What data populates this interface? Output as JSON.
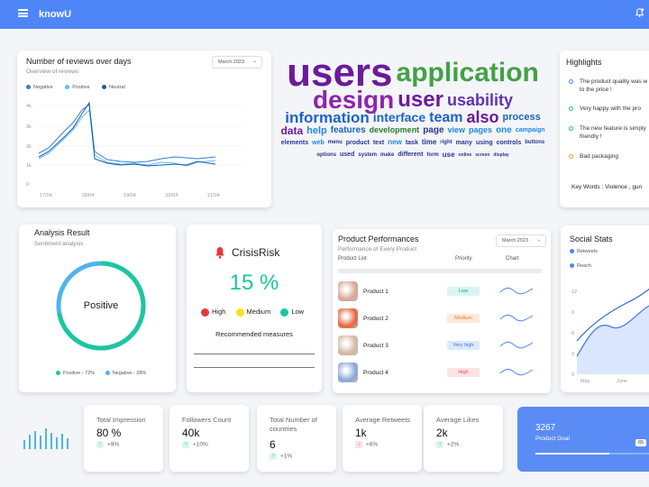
{
  "app": {
    "title": "knowU"
  },
  "reviews": {
    "title": "Number of reviews over days",
    "subtitle": "Overview of reviews",
    "dropdown": "March 2023",
    "legend": [
      "Negative",
      "Positive",
      "Neutral"
    ],
    "colors": {
      "negative": "#3a7bd5",
      "positive": "#5bc0eb",
      "neutral": "#1f5aa6"
    },
    "chart_data": {
      "type": "line",
      "x": [
        "17/04",
        "18/04",
        "19/04",
        "20/04",
        "21/04"
      ],
      "y_ticks": [
        "4k",
        "3k",
        "2k",
        "1k",
        "0"
      ],
      "ylim": [
        0,
        4000
      ]
    }
  },
  "highlights": {
    "title": "Highlights",
    "items": [
      {
        "text": "The product quality was w",
        "text2": "to the price !",
        "color": "#4f86f7"
      },
      {
        "text": "Very happy with the pro",
        "text2": "",
        "color": "#2ab7a9"
      },
      {
        "text": "The new feature is simply",
        "text2": "friendly !",
        "color": "#2ab7a9"
      },
      {
        "text": "Bad packaging",
        "text2": "",
        "color": "#f0a030"
      }
    ],
    "keywords": "Key Words :  Violence , gun"
  },
  "analysis": {
    "title": "Analysis Result",
    "subtitle": "Sentiment analysis",
    "center_label": "Positive",
    "legend": [
      {
        "label": "Positive - 72%",
        "color": "#1cc6a0"
      },
      {
        "label": "Negative - 28%",
        "color": "#4fb3f0"
      }
    ],
    "chart_data": {
      "type": "pie",
      "categories": [
        "Positive",
        "Negative"
      ],
      "values": [
        72,
        28
      ]
    }
  },
  "crisis": {
    "title": "CrisisRisk",
    "value": "15 %",
    "levels": [
      {
        "label": "High",
        "color": "#e53935"
      },
      {
        "label": "Medium",
        "color": "#f6e21f"
      },
      {
        "label": "Low",
        "color": "#1cc6a0"
      }
    ],
    "measures_title": "Recommended measures"
  },
  "products": {
    "title": "Product Performances",
    "subtitle": "Performance of Every Product",
    "dropdown": "March 2023",
    "columns": [
      "Product List",
      "Priority",
      "Chart"
    ],
    "rows": [
      {
        "name": "Product 1",
        "priority": "Low",
        "bg": "#d7f5ef",
        "fg": "#1a9b84"
      },
      {
        "name": "Product 2",
        "priority": "Medium",
        "bg": "#fde9d6",
        "fg": "#e0823a"
      },
      {
        "name": "Product 3",
        "priority": "Very high",
        "bg": "#dde9ff",
        "fg": "#3a6fd8"
      },
      {
        "name": "Product 4",
        "priority": "High",
        "bg": "#fde2e2",
        "fg": "#e05656"
      }
    ]
  },
  "social": {
    "title": "Social Stats",
    "legend": [
      {
        "label": "Retweets",
        "color": "#4f86f7"
      },
      {
        "label": "Reach",
        "color": "#4f86f7"
      }
    ],
    "chart_data": {
      "type": "area",
      "x": [
        "May",
        "June"
      ],
      "y_ticks": [
        "12",
        "9",
        "6",
        "3",
        "0"
      ],
      "ylim": [
        0,
        12
      ]
    }
  },
  "kpis": [
    {
      "label": "Total Impression",
      "value": "80 %",
      "delta": "+9%",
      "arrow": "↑"
    },
    {
      "label": "Followers Count",
      "value": "40k",
      "delta": "+10%",
      "arrow": "↑"
    },
    {
      "label": "Total Number of countries",
      "value": "6",
      "delta": "+1%",
      "arrow": "↑"
    },
    {
      "label": "Average Retweets",
      "value": "1k",
      "delta": "+6%",
      "arrow": "↓"
    },
    {
      "label": "Average Likes",
      "value": "2k",
      "delta": "+2%",
      "arrow": "↑"
    }
  ],
  "goal": {
    "value": "3267",
    "label": "Product Goal",
    "percent_label": "65",
    "progress": 0.65
  },
  "wordcloud": {
    "words": [
      {
        "t": "users",
        "c": "#6a1b9a",
        "s": 44
      },
      {
        "t": "application",
        "c": "#43a047",
        "s": 30
      },
      {
        "t": "design",
        "c": "#8e24aa",
        "s": 28
      },
      {
        "t": "user",
        "c": "#6a1b9a",
        "s": 24
      },
      {
        "t": "usability",
        "c": "#5e35b1",
        "s": 18
      },
      {
        "t": "information",
        "c": "#1e63c4",
        "s": 17
      },
      {
        "t": "interface",
        "c": "#1e63c4",
        "s": 14
      },
      {
        "t": "team",
        "c": "#1e63c4",
        "s": 16
      },
      {
        "t": "also",
        "c": "#6a1b9a",
        "s": 18
      },
      {
        "t": "process",
        "c": "#1565c0",
        "s": 11
      },
      {
        "t": "data",
        "c": "#6a1b9a",
        "s": 12
      },
      {
        "t": "help",
        "c": "#1e88e5",
        "s": 11
      },
      {
        "t": "features",
        "c": "#1565c0",
        "s": 10
      },
      {
        "t": "development",
        "c": "#2e7d32",
        "s": 9
      },
      {
        "t": "page",
        "c": "#283593",
        "s": 10
      },
      {
        "t": "view",
        "c": "#1e88e5",
        "s": 9
      },
      {
        "t": "pages",
        "c": "#1e88e5",
        "s": 9
      },
      {
        "t": "one",
        "c": "#1e88e5",
        "s": 10
      },
      {
        "t": "campaign",
        "c": "#1e88e5",
        "s": 7
      },
      {
        "t": "elements",
        "c": "#283593",
        "s": 7
      },
      {
        "t": "web",
        "c": "#1e88e5",
        "s": 7
      },
      {
        "t": "menu",
        "c": "#283593",
        "s": 6
      },
      {
        "t": "product",
        "c": "#283593",
        "s": 7
      },
      {
        "t": "text",
        "c": "#283593",
        "s": 7
      },
      {
        "t": "new",
        "c": "#1e88e5",
        "s": 8
      },
      {
        "t": "task",
        "c": "#283593",
        "s": 7
      },
      {
        "t": "time",
        "c": "#283593",
        "s": 8
      },
      {
        "t": "right",
        "c": "#283593",
        "s": 6
      },
      {
        "t": "many",
        "c": "#283593",
        "s": 7
      },
      {
        "t": "using",
        "c": "#283593",
        "s": 7
      },
      {
        "t": "controls",
        "c": "#283593",
        "s": 7
      },
      {
        "t": "buttons",
        "c": "#283593",
        "s": 6
      },
      {
        "t": "options",
        "c": "#283593",
        "s": 6
      },
      {
        "t": "used",
        "c": "#283593",
        "s": 7
      },
      {
        "t": "system",
        "c": "#283593",
        "s": 6
      },
      {
        "t": "make",
        "c": "#283593",
        "s": 6
      },
      {
        "t": "different",
        "c": "#283593",
        "s": 7
      },
      {
        "t": "form",
        "c": "#283593",
        "s": 6
      },
      {
        "t": "use",
        "c": "#283593",
        "s": 8
      },
      {
        "t": "online",
        "c": "#283593",
        "s": 5
      },
      {
        "t": "screen",
        "c": "#283593",
        "s": 5
      },
      {
        "t": "display",
        "c": "#283593",
        "s": 5
      }
    ]
  }
}
